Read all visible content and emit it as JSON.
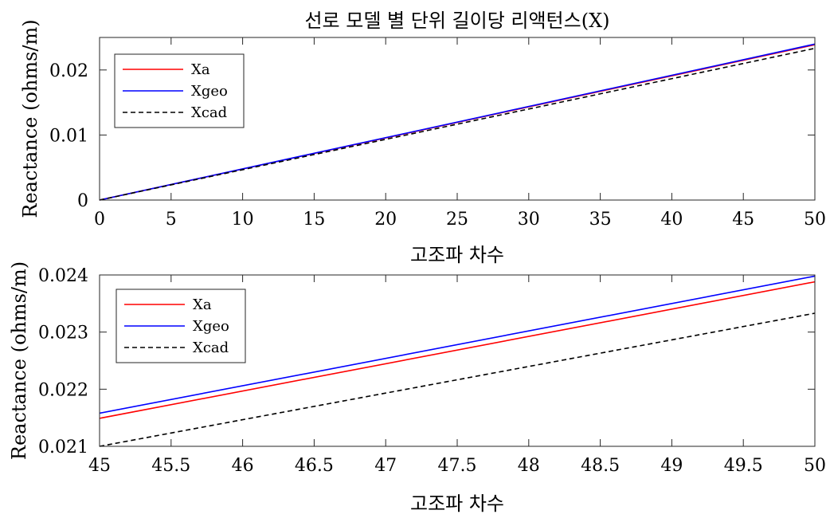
{
  "title": "선로 모델 별 단위 길이당 리액턴스(X)",
  "chart_data": [
    {
      "type": "line",
      "title": "선로 모델 별 단위 길이당 리액턴스(X)",
      "xlabel": "고조파 차수",
      "ylabel": "Reactance (ohms/m)",
      "xlim": [
        0,
        50
      ],
      "ylim": [
        0,
        0.025
      ],
      "xticks": [
        0,
        5,
        10,
        15,
        20,
        25,
        30,
        35,
        40,
        45,
        50
      ],
      "xtick_labels": [
        "0",
        "5",
        "10",
        "15",
        "20",
        "25",
        "30",
        "35",
        "40",
        "45",
        "50"
      ],
      "yticks": [
        0,
        0.01,
        0.02
      ],
      "ytick_labels": [
        "0",
        "0.01",
        "0.02"
      ],
      "grid": false,
      "legend_position": "top-left",
      "series": [
        {
          "name": "Xa",
          "color": "#ff0000",
          "style": "solid",
          "x": [
            0,
            50
          ],
          "y": [
            0,
            0.02388
          ]
        },
        {
          "name": "Xgeo",
          "color": "#0000ff",
          "style": "solid",
          "x": [
            0,
            50
          ],
          "y": [
            0,
            0.02398
          ]
        },
        {
          "name": "Xcad",
          "color": "#000000",
          "style": "dashed",
          "x": [
            0,
            50
          ],
          "y": [
            0,
            0.02333
          ]
        }
      ]
    },
    {
      "type": "line",
      "title": "",
      "xlabel": "고조파 차수",
      "ylabel": "Reactance (ohms/m)",
      "xlim": [
        45,
        50
      ],
      "ylim": [
        0.021,
        0.024
      ],
      "xticks": [
        45,
        45.5,
        46,
        46.5,
        47,
        47.5,
        48,
        48.5,
        49,
        49.5,
        50
      ],
      "xtick_labels": [
        "45",
        "45.5",
        "46",
        "46.5",
        "47",
        "47.5",
        "48",
        "48.5",
        "49",
        "49.5",
        "50"
      ],
      "yticks": [
        0.021,
        0.022,
        0.023,
        0.024
      ],
      "ytick_labels": [
        "0.021",
        "0.022",
        "0.023",
        "0.024"
      ],
      "grid": false,
      "legend_position": "top-left",
      "series": [
        {
          "name": "Xa",
          "color": "#ff0000",
          "style": "solid",
          "x": [
            45,
            50
          ],
          "y": [
            0.02149,
            0.02388
          ]
        },
        {
          "name": "Xgeo",
          "color": "#0000ff",
          "style": "solid",
          "x": [
            45,
            50
          ],
          "y": [
            0.02158,
            0.02398
          ]
        },
        {
          "name": "Xcad",
          "color": "#000000",
          "style": "dashed",
          "x": [
            45,
            50
          ],
          "y": [
            0.021,
            0.02333
          ]
        }
      ]
    }
  ]
}
